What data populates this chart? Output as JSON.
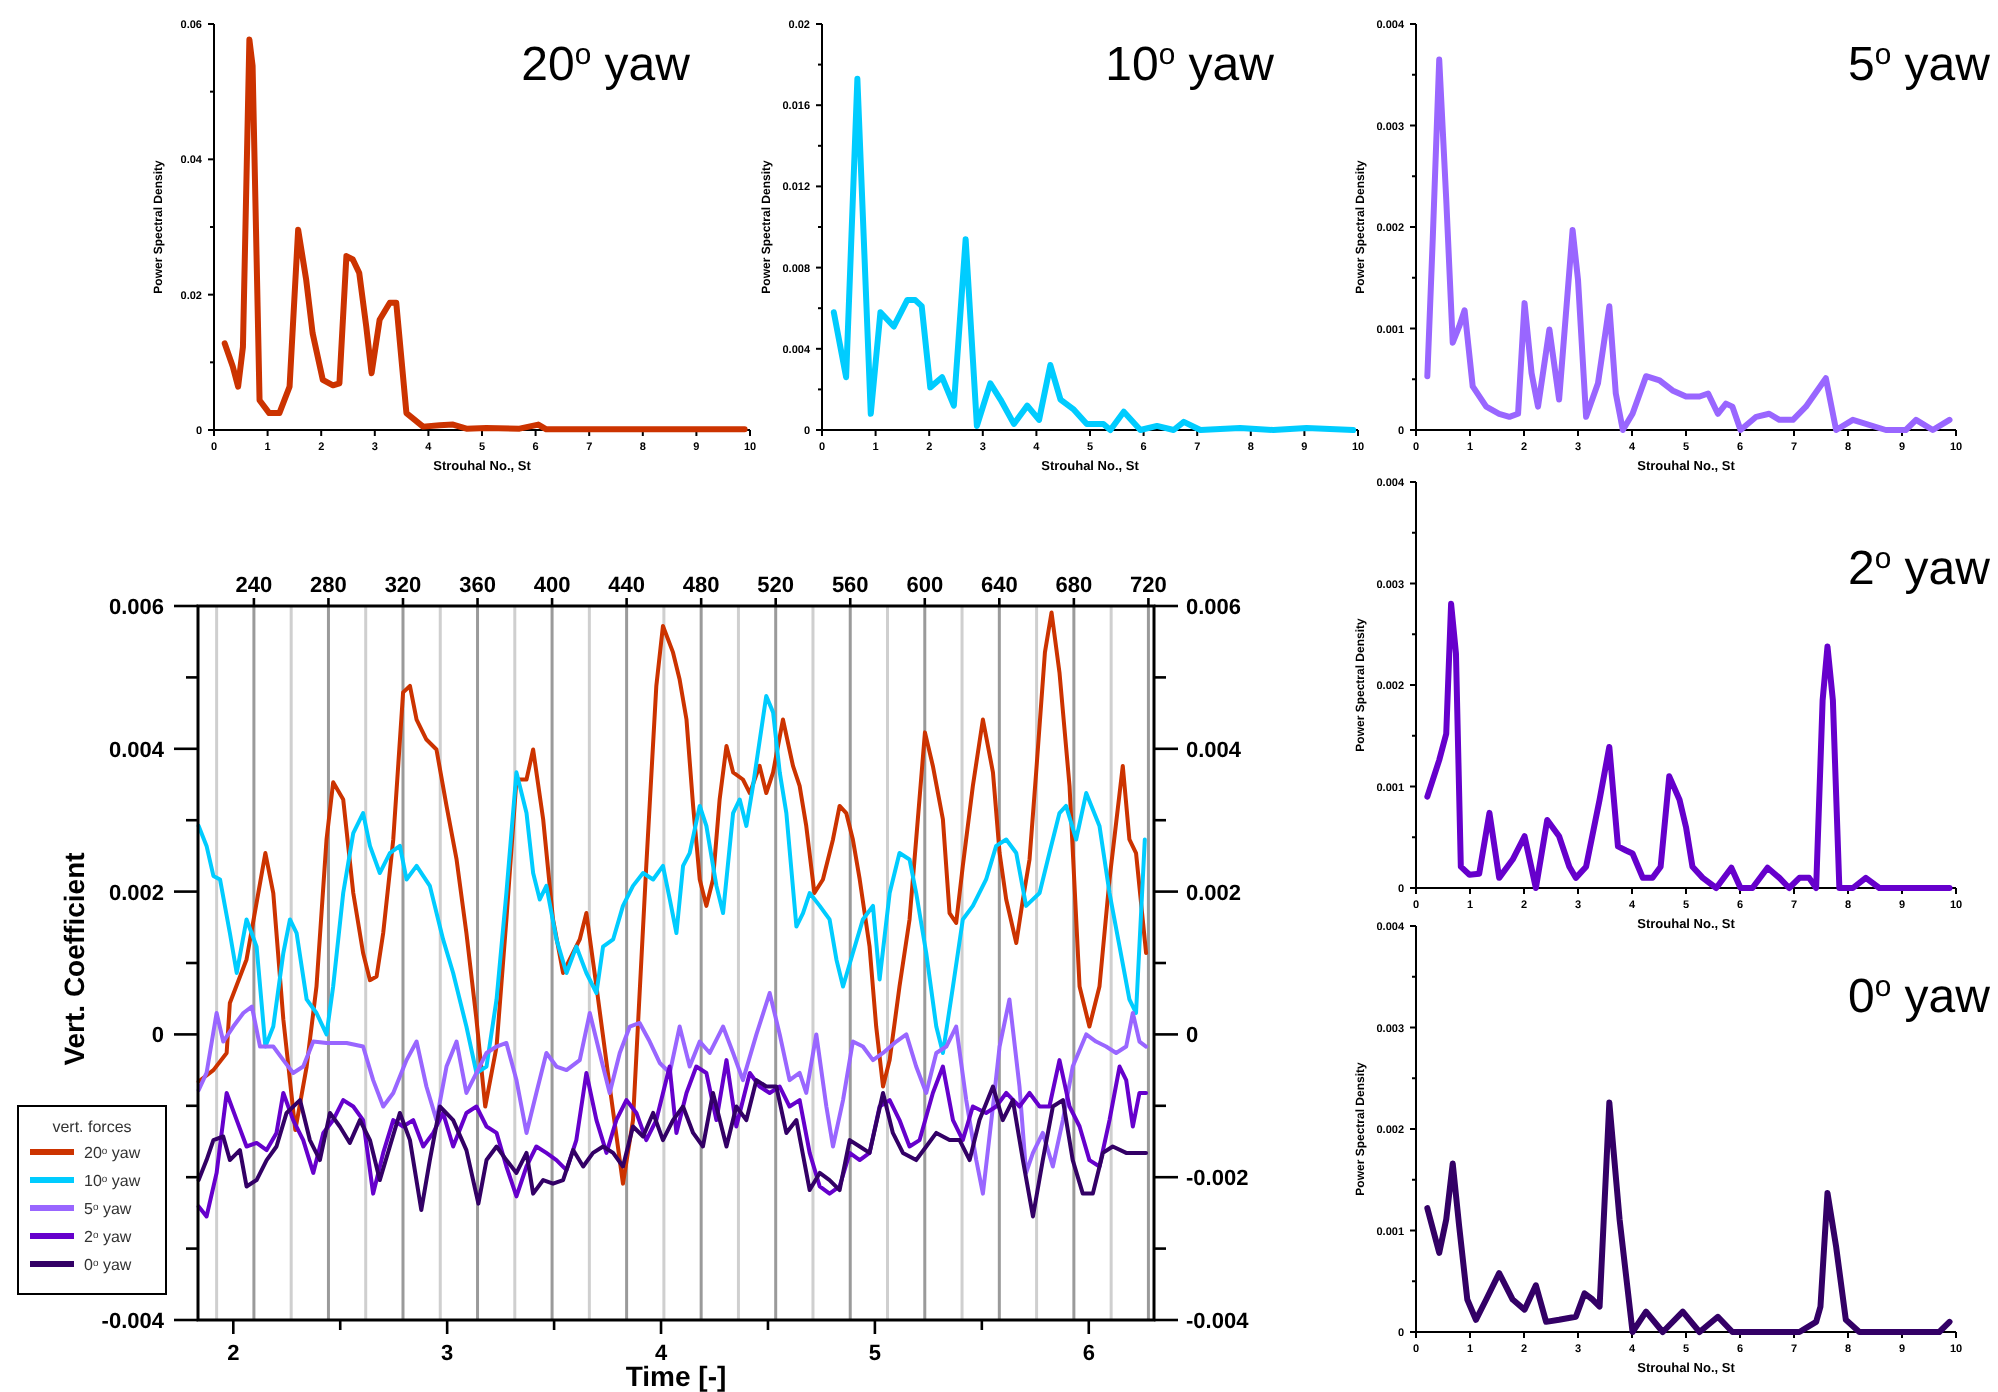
{
  "chart_data": [
    {
      "type": "line",
      "title": "20$^{o}$ yaw",
      "xlabel": "Strouhal No., St",
      "ylabel": "Power Spectral Density",
      "xlim": [
        0,
        10
      ],
      "xticks": [
        0,
        1,
        2,
        3,
        4,
        5,
        6,
        7,
        8,
        9,
        10
      ],
      "ylim": [
        0,
        0.06
      ],
      "yticks": [
        0,
        {
          "value": 0.01,
          "label": null
        },
        0.02,
        {
          "value": 0.03,
          "label": null
        },
        0.04,
        {
          "value": 0.05,
          "label": null
        },
        0.06
      ],
      "series": [
        {
          "color": "#cc3300",
          "x": [
            0.2,
            0.35,
            0.45,
            0.54,
            0.66,
            0.72,
            0.85,
            1.03,
            1.22,
            1.41,
            1.57,
            1.72,
            1.84,
            2.03,
            2.22,
            2.34,
            2.47,
            2.59,
            2.71,
            2.84,
            2.94,
            3.09,
            3.28,
            3.4,
            3.59,
            3.9,
            4.21,
            4.46,
            4.71,
            5.08,
            5.7,
            6.05,
            6.2,
            6.95,
            8.19,
            9.9
          ],
          "values": [
            0.0128,
            0.0094,
            0.0064,
            0.0123,
            0.0577,
            0.0538,
            0.0044,
            0.0025,
            0.0025,
            0.0064,
            0.0296,
            0.0222,
            0.0143,
            0.0074,
            0.0066,
            0.0069,
            0.0257,
            0.0252,
            0.0232,
            0.0153,
            0.0084,
            0.0163,
            0.0188,
            0.0188,
            0.0025,
            0.0005,
            0.0007,
            0.0008,
            0.0002,
            0.0003,
            0.0002,
            0.0008,
            0.0001,
            0.0001,
            0.0001,
            0.0001
          ]
        }
      ]
    },
    {
      "type": "line",
      "title": "10$^{o}$ yaw",
      "xlabel": "Strouhal No., St",
      "ylabel": "Power Spectral Density",
      "xlim": [
        0,
        10
      ],
      "xticks": [
        0,
        1,
        2,
        3,
        4,
        5,
        6,
        7,
        8,
        9,
        10
      ],
      "ylim": [
        0,
        0.02
      ],
      "yticks": [
        0,
        {
          "value": 0.002,
          "label": null
        },
        0.004,
        {
          "value": 0.006,
          "label": null
        },
        0.008,
        {
          "value": 0.01,
          "label": null
        },
        0.012,
        {
          "value": 0.014,
          "label": null
        },
        0.016,
        {
          "value": 0.018,
          "label": null
        },
        0.02
      ],
      "series": [
        {
          "color": "#00ccff",
          "x": [
            0.22,
            0.45,
            0.66,
            0.91,
            1.09,
            1.34,
            1.59,
            1.74,
            1.86,
            2.02,
            2.24,
            2.46,
            2.68,
            2.89,
            3.14,
            3.33,
            3.58,
            3.83,
            4.05,
            4.26,
            4.45,
            4.7,
            4.94,
            5.25,
            5.38,
            5.63,
            5.94,
            6.25,
            6.56,
            6.75,
            7.06,
            7.8,
            8.42,
            9.04,
            9.91
          ],
          "values": [
            0.0058,
            0.0026,
            0.0173,
            0.0008,
            0.0058,
            0.0051,
            0.0064,
            0.0064,
            0.0061,
            0.0021,
            0.0026,
            0.0012,
            0.0094,
            0.0002,
            0.0023,
            0.0015,
            0.0003,
            0.0012,
            0.0005,
            0.0032,
            0.0015,
            0.001,
            0.0003,
            0.0003,
            0,
            0.0009,
            0,
            0.0002,
            0,
            0.0004,
            0,
            0.0001,
            0,
            0.0001,
            0
          ]
        }
      ]
    },
    {
      "type": "line",
      "title": "5$^{o}$ yaw",
      "xlabel": "Strouhal No., St",
      "ylabel": "Power Spectral Density",
      "xlim": [
        0,
        10
      ],
      "xticks": [
        0,
        1,
        2,
        3,
        4,
        5,
        6,
        7,
        8,
        9,
        10
      ],
      "ylim": [
        0,
        0.004
      ],
      "yticks": [
        0,
        {
          "value": 0.0005,
          "label": null
        },
        0.001,
        {
          "value": 0.0015,
          "label": null
        },
        0.002,
        {
          "value": 0.0025,
          "label": null
        },
        0.003,
        {
          "value": 0.0035,
          "label": null
        },
        0.004
      ],
      "series": [
        {
          "color": "#9966ff",
          "x": [
            0.21,
            0.31,
            0.43,
            0.56,
            0.68,
            0.8,
            0.9,
            1.05,
            1.3,
            1.54,
            1.73,
            1.89,
            2.01,
            2.14,
            2.26,
            2.47,
            2.65,
            2.9,
            3.0,
            3.15,
            3.37,
            3.58,
            3.7,
            3.83,
            4.01,
            4.26,
            4.51,
            4.75,
            5.0,
            5.25,
            5.41,
            5.59,
            5.74,
            5.86,
            6.01,
            6.3,
            6.54,
            6.73,
            6.98,
            7.22,
            7.59,
            7.78,
            8.09,
            8.7,
            9.07,
            9.26,
            9.57,
            9.88
          ],
          "values": [
            0.00053,
            0.00188,
            0.00365,
            0.00227,
            0.00086,
            0.00102,
            0.00118,
            0.00043,
            0.00023,
            0.00016,
            0.00013,
            0.00016,
            0.00125,
            0.00056,
            0.00023,
            0.00099,
            0.0003,
            0.00197,
            0.00148,
            0.00013,
            0.00046,
            0.00122,
            0.00036,
            0,
            0.00016,
            0.00053,
            0.00049,
            0.00039,
            0.00033,
            0.00033,
            0.00036,
            0.00016,
            0.00026,
            0.00023,
            0,
            0.00013,
            0.00016,
            0.0001,
            0.0001,
            0.00023,
            0.00051,
            0,
            0.0001,
            0,
            0,
            0.0001,
            0,
            0.0001
          ]
        }
      ]
    },
    {
      "type": "line",
      "xlabel": "Time [-]",
      "ylabel": "Vert. Coefficient",
      "legend_title": "vert. forces",
      "legend": "bottom left",
      "grid": "x",
      "xlim": [
        1.835,
        6.305
      ],
      "xticks": [
        2,
        {
          "value": 2.5,
          "label": null
        },
        3,
        {
          "value": 3.5,
          "label": null
        },
        4,
        {
          "value": 4.5,
          "label": null
        },
        5,
        {
          "value": 5.5,
          "label": null
        },
        6
      ],
      "x2lim": [
        210,
        723
      ],
      "x2ticks": [
        {
          "value": 220,
          "label": null
        },
        240,
        {
          "value": 260,
          "label": null
        },
        280,
        {
          "value": 300,
          "label": null
        },
        320,
        {
          "value": 340,
          "label": null
        },
        360,
        {
          "value": 380,
          "label": null
        },
        400,
        {
          "value": 420,
          "label": null
        },
        440,
        {
          "value": 460,
          "label": null
        },
        480,
        {
          "value": 500,
          "label": null
        },
        520,
        {
          "value": 540,
          "label": null
        },
        560,
        {
          "value": 580,
          "label": null
        },
        600,
        {
          "value": 620,
          "label": null
        },
        640,
        {
          "value": 660,
          "label": null
        },
        680,
        {
          "value": 700,
          "label": null
        },
        720
      ],
      "ylim": [
        -0.004,
        0.006
      ],
      "yticks": [
        -0.004,
        {
          "value": -0.003,
          "label": null
        },
        {
          "value": -0.002,
          "label": null
        },
        {
          "value": -0.001,
          "label": null
        },
        0,
        {
          "value": 0.001,
          "label": null
        },
        0.002,
        {
          "value": 0.003,
          "label": null
        },
        0.004,
        {
          "value": 0.005,
          "label": null
        },
        0.006
      ],
      "y2lim": [
        -0.004,
        0.006
      ],
      "y2ticks": [
        -0.004,
        {
          "value": -0.003,
          "label": null
        },
        -0.002,
        {
          "value": -0.001,
          "label": null
        },
        0,
        {
          "value": 0.001,
          "label": null
        },
        0.002,
        {
          "value": 0.003,
          "label": null
        },
        0.004,
        {
          "value": 0.005,
          "label": null
        },
        0.006
      ],
      "series": [
        {
          "name": "20$^{o}$ yaw",
          "color": "#cc3300",
          "x": [
            1.838,
            1.907,
            1.969,
            1.984,
            2.062,
            2.15,
            2.187,
            2.234,
            2.29,
            2.343,
            2.389,
            2.436,
            2.467,
            2.514,
            2.561,
            2.607,
            2.639,
            2.67,
            2.701,
            2.748,
            2.794,
            2.826,
            2.857,
            2.903,
            2.95,
            2.997,
            3.044,
            3.09,
            3.137,
            3.178,
            3.231,
            3.277,
            3.324,
            3.371,
            3.402,
            3.449,
            3.495,
            3.542,
            3.573,
            3.62,
            3.651,
            3.698,
            3.76,
            3.822,
            3.869,
            3.931,
            3.978,
            4.009,
            4.056,
            4.087,
            4.119,
            4.15,
            4.181,
            4.212,
            4.243,
            4.274,
            4.306,
            4.337,
            4.383,
            4.415,
            4.461,
            4.492,
            4.524,
            4.57,
            4.617,
            4.648,
            4.679,
            4.717,
            4.757,
            4.804,
            4.835,
            4.866,
            4.897,
            4.929,
            4.975,
            5.006,
            5.038,
            5.069,
            5.115,
            5.162,
            5.193,
            5.234,
            5.271,
            5.318,
            5.349,
            5.38,
            5.411,
            5.458,
            5.505,
            5.552,
            5.583,
            5.614,
            5.661,
            5.692,
            5.723,
            5.754,
            5.795,
            5.826,
            5.863,
            5.91,
            5.957,
            6.003,
            6.05,
            6.097,
            6.159,
            6.19,
            6.221,
            6.268
          ],
          "values": [
            -0.00066,
            -0.0005,
            -0.00026,
            0.00044,
            0.00105,
            0.00254,
            0.00198,
            0.00021,
            -0.00134,
            -0.00045,
            0.00067,
            0.00273,
            0.00353,
            0.00329,
            0.00198,
            0.00114,
            0.00076,
            0.00081,
            0.00142,
            0.00273,
            0.00479,
            0.00488,
            0.00441,
            0.00413,
            0.00399,
            0.0032,
            0.00245,
            0.00142,
            0.00021,
            -0.00101,
            -0.00017,
            0.00161,
            0.00357,
            0.00357,
            0.00399,
            0.00301,
            0.00161,
            0.00086,
            0.00105,
            0.00133,
            0.0017,
            0.00067,
            -0.00073,
            -0.00209,
            -0.0012,
            0.00236,
            0.00488,
            0.00572,
            0.00535,
            0.00497,
            0.00441,
            0.0032,
            0.00217,
            0.0018,
            0.00217,
            0.00329,
            0.00404,
            0.00367,
            0.00357,
            0.00338,
            0.00376,
            0.00338,
            0.00367,
            0.00441,
            0.00376,
            0.00348,
            0.00292,
            0.00198,
            0.00217,
            0.00273,
            0.0032,
            0.0031,
            0.00273,
            0.00217,
            0.00123,
            0.00011,
            -0.00073,
            -0.00036,
            0.00067,
            0.00161,
            0.00273,
            0.00423,
            0.00376,
            0.00301,
            0.0017,
            0.00156,
            0.00236,
            0.00348,
            0.00441,
            0.00367,
            0.00254,
            0.00189,
            0.00128,
            0.00189,
            0.00245,
            0.00367,
            0.00535,
            0.00591,
            0.00507,
            0.00348,
            0.00067,
            0.00011,
            0.00067,
            0.00217,
            0.00376,
            0.00273,
            0.00254,
            0.00114
          ]
        },
        {
          "name": "10$^{o}$ yaw",
          "color": "#00ccff",
          "x": [
            1.838,
            1.875,
            1.907,
            1.938,
            1.984,
            2.016,
            2.062,
            2.109,
            2.15,
            2.187,
            2.234,
            2.265,
            2.296,
            2.343,
            2.389,
            2.436,
            2.467,
            2.514,
            2.561,
            2.607,
            2.639,
            2.685,
            2.732,
            2.779,
            2.81,
            2.857,
            2.919,
            2.981,
            3.028,
            3.09,
            3.137,
            3.184,
            3.231,
            3.277,
            3.324,
            3.371,
            3.402,
            3.433,
            3.464,
            3.511,
            3.558,
            3.604,
            3.651,
            3.698,
            3.729,
            3.776,
            3.822,
            3.869,
            3.916,
            3.963,
            4.009,
            4.041,
            4.072,
            4.103,
            4.134,
            4.181,
            4.212,
            4.259,
            4.29,
            4.337,
            4.368,
            4.399,
            4.43,
            4.492,
            4.524,
            4.555,
            4.586,
            4.633,
            4.664,
            4.695,
            4.742,
            4.788,
            4.82,
            4.851,
            4.897,
            4.944,
            4.991,
            5.022,
            5.069,
            5.115,
            5.162,
            5.193,
            5.24,
            5.287,
            5.318,
            5.365,
            5.411,
            5.458,
            5.52,
            5.567,
            5.614,
            5.661,
            5.707,
            5.77,
            5.816,
            5.863,
            5.894,
            5.941,
            5.988,
            6.05,
            6.097,
            6.144,
            6.19,
            6.221,
            6.262
          ],
          "values": [
            0.00292,
            0.00264,
            0.00222,
            0.00217,
            0.00142,
            0.00086,
            0.00161,
            0.00123,
            -0.00017,
            0.00011,
            0.00114,
            0.00161,
            0.00142,
            0.00049,
            0.0003,
            0,
            0.00067,
            0.00198,
            0.00282,
            0.0031,
            0.00264,
            0.00226,
            0.00254,
            0.00264,
            0.00217,
            0.00236,
            0.00208,
            0.00133,
            0.00086,
            0.00011,
            -0.00054,
            -0.00045,
            0.00049,
            0.00198,
            0.00367,
            0.0031,
            0.00226,
            0.00189,
            0.00208,
            0.00133,
            0.00086,
            0.00123,
            0.00086,
            0.00058,
            0.00123,
            0.00133,
            0.0018,
            0.00208,
            0.00226,
            0.00217,
            0.00236,
            0.00189,
            0.00142,
            0.00236,
            0.00254,
            0.0032,
            0.00292,
            0.00208,
            0.0017,
            0.0031,
            0.00329,
            0.00292,
            0.00348,
            0.00474,
            0.00451,
            0.00367,
            0.0031,
            0.00151,
            0.0017,
            0.00198,
            0.0018,
            0.00161,
            0.00105,
            0.00067,
            0.00114,
            0.00161,
            0.0018,
            0.00077,
            0.00198,
            0.00254,
            0.00245,
            0.00198,
            0.00114,
            0.00011,
            -0.00026,
            0.00067,
            0.00161,
            0.0018,
            0.00217,
            0.00264,
            0.00273,
            0.00254,
            0.0018,
            0.00198,
            0.00254,
            0.0031,
            0.0032,
            0.00273,
            0.00338,
            0.00292,
            0.00198,
            0.00123,
            0.00049,
            0.0003,
            0.00273
          ]
        },
        {
          "name": "5$^{o}$ yaw",
          "color": "#9966ff",
          "x": [
            1.838,
            1.875,
            1.922,
            1.953,
            2.0,
            2.047,
            2.087,
            2.125,
            2.187,
            2.234,
            2.28,
            2.327,
            2.374,
            2.436,
            2.53,
            2.607,
            2.654,
            2.701,
            2.748,
            2.81,
            2.857,
            2.903,
            2.95,
            2.997,
            3.044,
            3.09,
            3.137,
            3.184,
            3.231,
            3.277,
            3.324,
            3.371,
            3.417,
            3.464,
            3.511,
            3.558,
            3.62,
            3.667,
            3.713,
            3.76,
            3.807,
            3.854,
            3.9,
            3.947,
            3.994,
            4.041,
            4.087,
            4.134,
            4.181,
            4.228,
            4.29,
            4.337,
            4.383,
            4.446,
            4.508,
            4.555,
            4.601,
            4.648,
            4.679,
            4.726,
            4.773,
            4.804,
            4.851,
            4.897,
            4.944,
            4.991,
            5.038,
            5.1,
            5.147,
            5.193,
            5.24,
            5.287,
            5.334,
            5.38,
            5.427,
            5.474,
            5.505,
            5.552,
            5.583,
            5.629,
            5.676,
            5.707,
            5.739,
            5.785,
            5.832,
            5.879,
            5.925,
            5.988,
            6.034,
            6.081,
            6.128,
            6.175,
            6.206,
            6.237,
            6.268
          ],
          "values": [
            -0.00078,
            -0.00054,
            0.0003,
            -0.0001,
            0.00011,
            0.0003,
            0.00039,
            -0.00017,
            -0.00017,
            -0.00036,
            -0.00054,
            -0.00045,
            -0.0001,
            -0.00012,
            -0.00012,
            -0.00017,
            -0.00064,
            -0.00101,
            -0.00082,
            -0.00036,
            -0.0001,
            -0.00073,
            -0.0012,
            -0.00045,
            -0.0001,
            -0.00082,
            -0.00054,
            -0.00026,
            -0.00017,
            -0.00012,
            -0.00064,
            -0.00138,
            -0.00082,
            -0.00026,
            -0.00045,
            -0.0005,
            -0.00036,
            0.0003,
            -0.00026,
            -0.00082,
            -0.00026,
            0.00011,
            0.00016,
            -0.0001,
            -0.0004,
            -0.00054,
            0.00011,
            -0.00045,
            -0.0001,
            -0.00026,
            0.00011,
            -0.00026,
            -0.00064,
            0,
            0.00058,
            0,
            -0.00064,
            -0.00054,
            -0.00082,
            0,
            -0.00101,
            -0.00157,
            -0.00092,
            -0.0001,
            -0.00017,
            -0.00036,
            -0.00026,
            -0.0001,
            0,
            -0.00045,
            -0.00082,
            -0.00026,
            -0.00017,
            0.00011,
            -0.00092,
            -0.00176,
            -0.00223,
            -0.00101,
            -0.00017,
            0.00049,
            -0.00073,
            -0.00194,
            -0.00166,
            -0.00138,
            -0.00185,
            -0.0012,
            -0.00045,
            0,
            -0.0001,
            -0.00017,
            -0.00026,
            -0.00017,
            0.0003,
            -0.0001,
            -0.00017
          ]
        },
        {
          "name": "2$^{o}$ yaw",
          "color": "#6600cc",
          "x": [
            1.838,
            1.875,
            1.922,
            1.969,
            2.016,
            2.062,
            2.109,
            2.156,
            2.202,
            2.234,
            2.28,
            2.327,
            2.374,
            2.421,
            2.467,
            2.514,
            2.561,
            2.607,
            2.654,
            2.701,
            2.748,
            2.794,
            2.841,
            2.888,
            2.935,
            2.981,
            3.028,
            3.09,
            3.137,
            3.184,
            3.231,
            3.277,
            3.324,
            3.371,
            3.417,
            3.464,
            3.511,
            3.558,
            3.604,
            3.651,
            3.698,
            3.745,
            3.791,
            3.838,
            3.885,
            3.931,
            3.978,
            4.04,
            4.072,
            4.119,
            4.165,
            4.212,
            4.259,
            4.306,
            4.352,
            4.415,
            4.461,
            4.508,
            4.555,
            4.601,
            4.648,
            4.695,
            4.742,
            4.788,
            4.835,
            4.882,
            4.929,
            4.975,
            5.022,
            5.069,
            5.115,
            5.162,
            5.209,
            5.271,
            5.318,
            5.365,
            5.411,
            5.458,
            5.52,
            5.567,
            5.614,
            5.676,
            5.723,
            5.77,
            5.816,
            5.863,
            5.91,
            5.957,
            6.003,
            6.05,
            6.097,
            6.144,
            6.175,
            6.206,
            6.237,
            6.268
          ],
          "values": [
            -0.00241,
            -0.00255,
            -0.00194,
            -0.00082,
            -0.0012,
            -0.00157,
            -0.00152,
            -0.00162,
            -0.00138,
            -0.00082,
            -0.0012,
            -0.00148,
            -0.00194,
            -0.00138,
            -0.0012,
            -0.00092,
            -0.00101,
            -0.0012,
            -0.00223,
            -0.00166,
            -0.0012,
            -0.00129,
            -0.0012,
            -0.00157,
            -0.00138,
            -0.0011,
            -0.00157,
            -0.0011,
            -0.00101,
            -0.00129,
            -0.00138,
            -0.00185,
            -0.00227,
            -0.00185,
            -0.00157,
            -0.00166,
            -0.00176,
            -0.0019,
            -0.00148,
            -0.00054,
            -0.0012,
            -0.00166,
            -0.0012,
            -0.00092,
            -0.0011,
            -0.00148,
            -0.0012,
            -0.00045,
            -0.00138,
            -0.00082,
            -0.00045,
            -0.00054,
            -0.0012,
            -0.00036,
            -0.00129,
            -0.00054,
            -0.00073,
            -0.00082,
            -0.00073,
            -0.00101,
            -0.00092,
            -0.00166,
            -0.00213,
            -0.00223,
            -0.00213,
            -0.00166,
            -0.00176,
            -0.00166,
            -0.00101,
            -0.00092,
            -0.0012,
            -0.00157,
            -0.00148,
            -0.00082,
            -0.00045,
            -0.0012,
            -0.00148,
            -0.00101,
            -0.0011,
            -0.00101,
            -0.00082,
            -0.00101,
            -0.00082,
            -0.00101,
            -0.00101,
            -0.00036,
            -0.00101,
            -0.00129,
            -0.00176,
            -0.00185,
            -0.0012,
            -0.00045,
            -0.00064,
            -0.00129,
            -0.00082,
            -0.00082
          ]
        },
        {
          "name": "0$^{o}$ yaw",
          "color": "#330066",
          "x": [
            1.838,
            1.875,
            1.907,
            1.953,
            1.984,
            2.031,
            2.062,
            2.109,
            2.156,
            2.202,
            2.249,
            2.312,
            2.358,
            2.405,
            2.452,
            2.498,
            2.545,
            2.592,
            2.639,
            2.685,
            2.732,
            2.779,
            2.826,
            2.879,
            2.919,
            2.966,
            3.028,
            3.09,
            3.146,
            3.184,
            3.231,
            3.277,
            3.324,
            3.371,
            3.402,
            3.449,
            3.495,
            3.542,
            3.589,
            3.636,
            3.682,
            3.729,
            3.776,
            3.822,
            3.869,
            3.916,
            3.963,
            4.009,
            4.056,
            4.103,
            4.15,
            4.196,
            4.243,
            4.306,
            4.352,
            4.399,
            4.446,
            4.492,
            4.539,
            4.586,
            4.633,
            4.695,
            4.742,
            4.788,
            4.835,
            4.882,
            4.929,
            4.975,
            5.038,
            5.084,
            5.131,
            5.193,
            5.24,
            5.287,
            5.349,
            5.396,
            5.443,
            5.489,
            5.552,
            5.598,
            5.645,
            5.692,
            5.739,
            5.785,
            5.832,
            5.879,
            5.925,
            5.972,
            6.019,
            6.066,
            6.112,
            6.175,
            6.268
          ],
          "values": [
            -0.00204,
            -0.00176,
            -0.00148,
            -0.00143,
            -0.00176,
            -0.00162,
            -0.00213,
            -0.00204,
            -0.00176,
            -0.00157,
            -0.0011,
            -0.00092,
            -0.00148,
            -0.00176,
            -0.0011,
            -0.00129,
            -0.00152,
            -0.0012,
            -0.00148,
            -0.00204,
            -0.00157,
            -0.0011,
            -0.00148,
            -0.00246,
            -0.00176,
            -0.00101,
            -0.0012,
            -0.00162,
            -0.00237,
            -0.00176,
            -0.00157,
            -0.00176,
            -0.00194,
            -0.00166,
            -0.00223,
            -0.00204,
            -0.00209,
            -0.00204,
            -0.00162,
            -0.00185,
            -0.00166,
            -0.00157,
            -0.00166,
            -0.00185,
            -0.00129,
            -0.00143,
            -0.0011,
            -0.00148,
            -0.0012,
            -0.00101,
            -0.00138,
            -0.00157,
            -0.00082,
            -0.00157,
            -0.00101,
            -0.0012,
            -0.00064,
            -0.00073,
            -0.00073,
            -0.00138,
            -0.0012,
            -0.00218,
            -0.00194,
            -0.00204,
            -0.00218,
            -0.00148,
            -0.00157,
            -0.00166,
            -0.00082,
            -0.00138,
            -0.00166,
            -0.00176,
            -0.00157,
            -0.00138,
            -0.00148,
            -0.00148,
            -0.00176,
            -0.0012,
            -0.00073,
            -0.0012,
            -0.00092,
            -0.00176,
            -0.00255,
            -0.00176,
            -0.00101,
            -0.00092,
            -0.00176,
            -0.00223,
            -0.00223,
            -0.00166,
            -0.00157,
            -0.00166,
            -0.00166
          ]
        }
      ]
    },
    {
      "type": "line",
      "title": "2$^{o}$ yaw",
      "xlabel": "Strouhal No., St",
      "ylabel": "Power Spectral Density",
      "xlim": [
        0,
        10
      ],
      "xticks": [
        0,
        1,
        2,
        3,
        4,
        5,
        6,
        7,
        8,
        9,
        10
      ],
      "ylim": [
        0,
        0.004
      ],
      "yticks": [
        0,
        {
          "value": 0.0005,
          "label": null
        },
        0.001,
        {
          "value": 0.0015,
          "label": null
        },
        0.002,
        {
          "value": 0.0025,
          "label": null
        },
        0.003,
        {
          "value": 0.0035,
          "label": null
        },
        0.004
      ],
      "series": [
        {
          "color": "#6600cc",
          "x": [
            0.21,
            0.43,
            0.56,
            0.65,
            0.74,
            0.83,
            0.99,
            1.17,
            1.36,
            1.54,
            1.79,
            2.01,
            2.22,
            2.43,
            2.65,
            2.84,
            2.96,
            3.15,
            3.4,
            3.58,
            3.74,
            3.89,
            4.01,
            4.2,
            4.38,
            4.53,
            4.69,
            4.88,
            5.0,
            5.12,
            5.31,
            5.56,
            5.84,
            6.01,
            6.23,
            6.51,
            6.73,
            6.91,
            7.1,
            7.28,
            7.41,
            7.53,
            7.62,
            7.72,
            7.84,
            8.09,
            8.33,
            8.58,
            8.95,
            9.32,
            9.88
          ],
          "values": [
            0.0009,
            0.00126,
            0.00152,
            0.0028,
            0.00231,
            0.00021,
            0.00013,
            0.00014,
            0.00074,
            0.0001,
            0.00028,
            0.00051,
            0,
            0.00067,
            0.00051,
            0.00021,
            0.0001,
            0.00021,
            0.00087,
            0.00139,
            0.00041,
            0.00037,
            0.00034,
            0.0001,
            0.0001,
            0.00021,
            0.0011,
            0.00087,
            0.0006,
            0.00021,
            0.0001,
            0,
            0.0002,
            0,
            0,
            0.0002,
            0.0001,
            0,
            0.0001,
            0.0001,
            0,
            0.00185,
            0.00238,
            0.00185,
            0,
            0,
            0.0001,
            0,
            0,
            0,
            0
          ]
        }
      ]
    },
    {
      "type": "line",
      "title": "0$^{o}$ yaw",
      "xlabel": "Strouhal No., St",
      "ylabel": "Power Spectral Density",
      "xlim": [
        0,
        10
      ],
      "xticks": [
        0,
        1,
        2,
        3,
        4,
        5,
        6,
        7,
        8,
        9,
        10
      ],
      "ylim": [
        0,
        0.004
      ],
      "yticks": [
        0,
        {
          "value": 0.0005,
          "label": null
        },
        0.001,
        {
          "value": 0.0015,
          "label": null
        },
        0.002,
        {
          "value": 0.0025,
          "label": null
        },
        0.003,
        {
          "value": 0.0035,
          "label": null
        },
        0.004
      ],
      "series": [
        {
          "color": "#330066",
          "x": [
            0.21,
            0.43,
            0.56,
            0.68,
            0.8,
            0.95,
            1.11,
            1.3,
            1.54,
            1.79,
            2.01,
            2.22,
            2.41,
            2.65,
            2.96,
            3.12,
            3.27,
            3.4,
            3.58,
            3.77,
            4.01,
            4.26,
            4.57,
            4.94,
            5.25,
            5.59,
            5.86,
            6.23,
            6.54,
            6.85,
            7.1,
            7.41,
            7.49,
            7.62,
            7.78,
            7.96,
            8.21,
            8.46,
            8.83,
            9.2,
            9.44,
            9.69,
            9.88
          ],
          "values": [
            0.00122,
            0.00078,
            0.00111,
            0.00166,
            0.00104,
            0.00032,
            0.00012,
            0.00032,
            0.00058,
            0.00032,
            0.00022,
            0.00046,
            0.0001,
            0.00012,
            0.00015,
            0.00038,
            0.00032,
            0.00025,
            0.00226,
            0.00111,
            0,
            0.0002,
            0,
            0.0002,
            0,
            0.00015,
            0,
            0,
            0,
            0,
            0,
            0.0001,
            0.00025,
            0.00137,
            0.00084,
            0.00012,
            0,
            0,
            0,
            0,
            0,
            0,
            0.0001
          ]
        }
      ]
    }
  ]
}
